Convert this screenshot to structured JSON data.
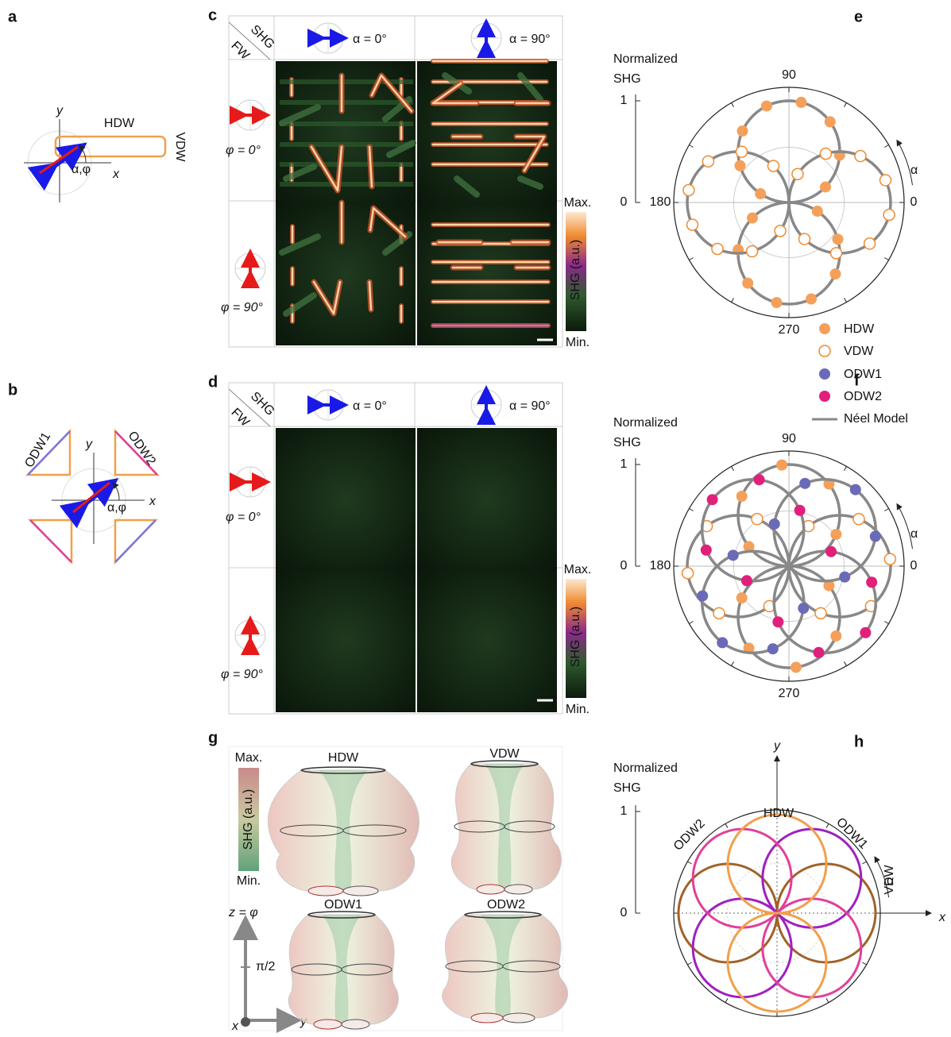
{
  "panels": {
    "a": {
      "label": "a",
      "y_axis": "y",
      "x_axis": "x",
      "hdw": "HDW",
      "vdw": "VDW",
      "angle": "α,φ"
    },
    "b": {
      "label": "b",
      "odw1": "ODW1",
      "odw2": "ODW2",
      "y_axis": "y",
      "x_axis": "x",
      "angle": "α,φ"
    },
    "c": {
      "label": "c",
      "corner_top": "SHG",
      "corner_bottom": "FW",
      "col_headers": [
        "α = 0°",
        "α = 90°"
      ],
      "row_headers": [
        "φ = 0°",
        "φ = 90°"
      ],
      "colorbar_max": "Max.",
      "colorbar_min": "Min.",
      "colorbar_label": "SHG (a.u.)"
    },
    "d": {
      "label": "d",
      "corner_top": "SHG",
      "corner_bottom": "FW",
      "col_headers": [
        "α = 0°",
        "α = 90°"
      ],
      "row_headers": [
        "φ = 0°",
        "φ = 90°"
      ],
      "colorbar_max": "Max.",
      "colorbar_min": "Min.",
      "colorbar_label": "SHG (a.u.)"
    },
    "e": {
      "label": "e",
      "axis_title": [
        "Normalized",
        "SHG"
      ],
      "radial_ticks": [
        1,
        0
      ],
      "angle_labels": [
        90,
        180,
        0,
        270
      ],
      "angle_symbol": "α"
    },
    "legend": [
      "HDW",
      "VDW",
      "ODW1",
      "ODW2",
      "Néel Model"
    ],
    "f": {
      "label": "f",
      "axis_title": [
        "Normalized",
        "SHG"
      ],
      "radial_ticks": [
        1,
        0
      ],
      "angle_labels": [
        90,
        180,
        0,
        270
      ],
      "angle_symbol": "α"
    },
    "g": {
      "label": "g",
      "colorbar_max": "Max.",
      "colorbar_min": "Min.",
      "colorbar_label": "SHG (a.u.)",
      "surfaces": [
        "HDW",
        "VDW",
        "ODW1",
        "ODW2"
      ],
      "z_axis": "z = φ",
      "z_tick": "π/2",
      "y_axis": "y",
      "x_axis": "x"
    },
    "h": {
      "label": "h",
      "axis_title": [
        "Normalized",
        "SHG"
      ],
      "radial_ticks": [
        1,
        0
      ],
      "y_axis": "y",
      "x_axis": "x",
      "curve_labels": [
        "HDW",
        "ODW1",
        "ODW2",
        "VDW"
      ],
      "angle_symbol": "α"
    }
  }
}
